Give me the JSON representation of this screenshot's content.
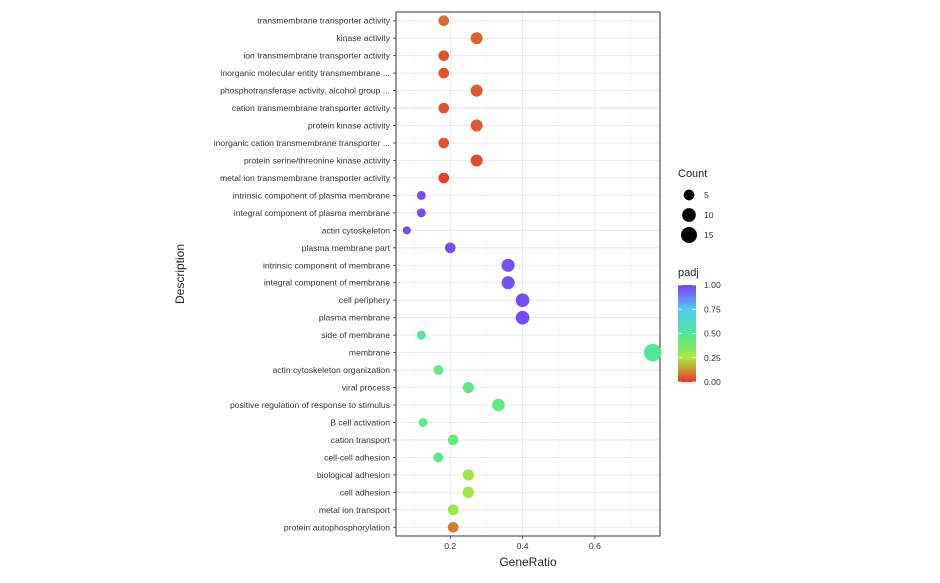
{
  "chart_data": {
    "type": "scatter",
    "xlabel": "GeneRatio",
    "ylabel": "Description",
    "xlim": [
      0.05,
      0.78
    ],
    "x_ticks": [
      0.2,
      0.4,
      0.6
    ],
    "x_tick_labels": [
      "0.2",
      "0.4",
      "0.6"
    ],
    "grid": true,
    "legend_placement": "right",
    "size_legend": {
      "title": "Count",
      "items": [
        {
          "label": "5",
          "value": 5
        },
        {
          "label": "10",
          "value": 10
        },
        {
          "label": "15",
          "value": 15
        }
      ]
    },
    "color_legend": {
      "title": "padj",
      "range": [
        0,
        1
      ],
      "ticks": [
        "1.00",
        "0.75",
        "0.50",
        "0.25",
        "0.00"
      ],
      "tick_values": [
        1,
        0.75,
        0.5,
        0.25,
        0
      ],
      "stops": [
        {
          "value": 0,
          "color": "#e8382c"
        },
        {
          "value": 0.25,
          "color": "#a8e83c"
        },
        {
          "value": 0.5,
          "color": "#4fe89a"
        },
        {
          "value": 0.75,
          "color": "#55c8f0"
        },
        {
          "value": 1,
          "color": "#7a3cf0"
        }
      ]
    },
    "points": [
      {
        "label": "transmembrane transporter activity",
        "x": 0.182,
        "count": 5,
        "padj": 0.08
      },
      {
        "label": "kinase activity",
        "x": 0.273,
        "count": 7,
        "padj": 0.06
      },
      {
        "label": "ion transmembrane transporter activity",
        "x": 0.182,
        "count": 5,
        "padj": 0.04
      },
      {
        "label": "inorganic molecular entity transmembrane ...",
        "x": 0.182,
        "count": 5,
        "padj": 0.04
      },
      {
        "label": "phosphotransferase activity, alcohol group ...",
        "x": 0.273,
        "count": 7,
        "padj": 0.05
      },
      {
        "label": "cation transmembrane transporter activity",
        "x": 0.182,
        "count": 5,
        "padj": 0.04
      },
      {
        "label": "protein kinase activity",
        "x": 0.273,
        "count": 7,
        "padj": 0.05
      },
      {
        "label": "inorganic cation transmembrane transporter ...",
        "x": 0.182,
        "count": 5,
        "padj": 0.04
      },
      {
        "label": "protein serine/threonine kinase activity",
        "x": 0.273,
        "count": 7,
        "padj": 0.03
      },
      {
        "label": "metal ion transmembrane transporter activity",
        "x": 0.182,
        "count": 5,
        "padj": 0.01
      },
      {
        "label": "intrinsic component of plasma membrane",
        "x": 0.12,
        "count": 3,
        "padj": 0.97
      },
      {
        "label": "integral component of plasma membrane",
        "x": 0.12,
        "count": 3,
        "padj": 0.97
      },
      {
        "label": "actin cytoskeleton",
        "x": 0.08,
        "count": 2,
        "padj": 0.98
      },
      {
        "label": "plasma membrane part",
        "x": 0.2,
        "count": 5,
        "padj": 0.97
      },
      {
        "label": "intrinsic component of membrane",
        "x": 0.36,
        "count": 9,
        "padj": 0.96
      },
      {
        "label": "integral component of membrane",
        "x": 0.36,
        "count": 9,
        "padj": 0.96
      },
      {
        "label": "cell periphery",
        "x": 0.4,
        "count": 10,
        "padj": 0.97
      },
      {
        "label": "plasma membrane",
        "x": 0.4,
        "count": 10,
        "padj": 0.97
      },
      {
        "label": "side of membrane",
        "x": 0.12,
        "count": 3,
        "padj": 0.5
      },
      {
        "label": "membrane",
        "x": 0.76,
        "count": 19,
        "padj": 0.5
      },
      {
        "label": "actin cytoskeleton organization",
        "x": 0.167,
        "count": 4,
        "padj": 0.45
      },
      {
        "label": "viral process",
        "x": 0.25,
        "count": 6,
        "padj": 0.45
      },
      {
        "label": "positive regulation of response to stimulus",
        "x": 0.333,
        "count": 8,
        "padj": 0.45
      },
      {
        "label": "B cell activation",
        "x": 0.125,
        "count": 3,
        "padj": 0.45
      },
      {
        "label": "cation transport",
        "x": 0.208,
        "count": 5,
        "padj": 0.42
      },
      {
        "label": "cell-cell adhesion",
        "x": 0.167,
        "count": 4,
        "padj": 0.45
      },
      {
        "label": "biological adhesion",
        "x": 0.25,
        "count": 6,
        "padj": 0.28
      },
      {
        "label": "cell adhesion",
        "x": 0.25,
        "count": 6,
        "padj": 0.28
      },
      {
        "label": "metal ion transport",
        "x": 0.208,
        "count": 5,
        "padj": 0.28
      },
      {
        "label": "protein autophosphorylation",
        "x": 0.208,
        "count": 5,
        "padj": 0.1
      }
    ]
  }
}
